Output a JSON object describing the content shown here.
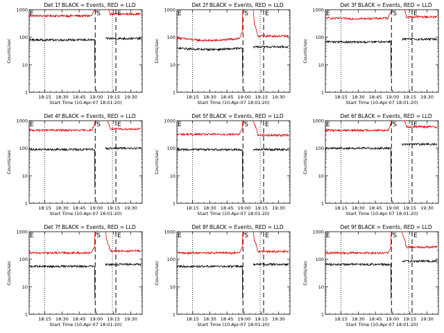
{
  "chart_data": {
    "type": "line",
    "layout": "3x3 grid",
    "scale": "log-y",
    "ylabel": "Counts/sec",
    "xlabel": "Start Time (10-Apr-07 18:01:20)",
    "x_ticks": [
      "18:15",
      "18:30",
      "18:45",
      "19:00",
      "19:15",
      "19:30"
    ],
    "x_tick_minutes": [
      15,
      30,
      45,
      60,
      75,
      90
    ],
    "xlim_minutes": [
      1.33,
      100
    ],
    "y_ticks": [
      "1",
      "10",
      "100",
      "1000"
    ],
    "y_tick_values": [
      1,
      10,
      100,
      1000
    ],
    "ylim": [
      1,
      1000
    ],
    "series_legend": {
      "events": "BLACK",
      "lld": "RED"
    },
    "markers": [
      {
        "label": "S",
        "minute": 59
      },
      {
        "label": "E",
        "minute": 77
      }
    ],
    "dotted_lines_minutes": [
      15,
      74
    ],
    "gap_minutes": [
      59,
      68
    ],
    "panels": [
      {
        "title": "Det 1f BLACK = Events, RED = LLD",
        "events_level": 80,
        "events_slope": 0.0,
        "lld_level": 600,
        "lld_slope": 0.0,
        "lld_after": 700,
        "events_after": 90,
        "red_peak": 1000
      },
      {
        "title": "Det 2f BLACK = Events, RED = LLD",
        "events_level": 40,
        "events_slope": -0.1,
        "lld_level": 95,
        "lld_slope": -0.2,
        "lld_after": 110,
        "events_after": 45,
        "red_peak": 1000
      },
      {
        "title": "Det 3f BLACK = Events, RED = LLD",
        "events_level": 70,
        "events_slope": -0.05,
        "lld_level": 500,
        "lld_slope": -0.05,
        "lld_after": 550,
        "events_after": 85,
        "red_peak": 1000
      },
      {
        "title": "Det 4f BLACK = Events, RED = LLD",
        "events_level": 90,
        "events_slope": 0.0,
        "lld_level": 450,
        "lld_slope": 0.0,
        "lld_after": 500,
        "events_after": 100,
        "red_peak": 1000
      },
      {
        "title": "Det 5f BLACK = Events, RED = LLD",
        "events_level": 90,
        "events_slope": 0.0,
        "lld_level": 320,
        "lld_slope": 0.0,
        "lld_after": 300,
        "events_after": 90,
        "red_peak": 1000
      },
      {
        "title": "Det 6f BLACK = Events, RED = LLD",
        "events_level": 100,
        "events_slope": 0.0,
        "lld_level": 450,
        "lld_slope": 0.0,
        "lld_after": 600,
        "events_after": 140,
        "red_peak": 1000
      },
      {
        "title": "Det 7f BLACK = Events, RED = LLD",
        "events_level": 55,
        "events_slope": 0.0,
        "lld_level": 170,
        "lld_slope": 0.0,
        "lld_after": 200,
        "events_after": 65,
        "red_peak": 1000
      },
      {
        "title": "Det 8f BLACK = Events, RED = LLD",
        "events_level": 55,
        "events_slope": 0.0,
        "lld_level": 170,
        "lld_slope": 0.0,
        "lld_after": 190,
        "events_after": 65,
        "red_peak": 1000
      },
      {
        "title": "Det 9f BLACK = Events, RED = LLD",
        "events_level": 65,
        "events_slope": 0.0,
        "lld_level": 170,
        "lld_slope": 0.0,
        "lld_after": 280,
        "events_after": 85,
        "red_peak": 1000
      }
    ]
  },
  "colors": {
    "events": "#000000",
    "lld": "#e00000"
  }
}
